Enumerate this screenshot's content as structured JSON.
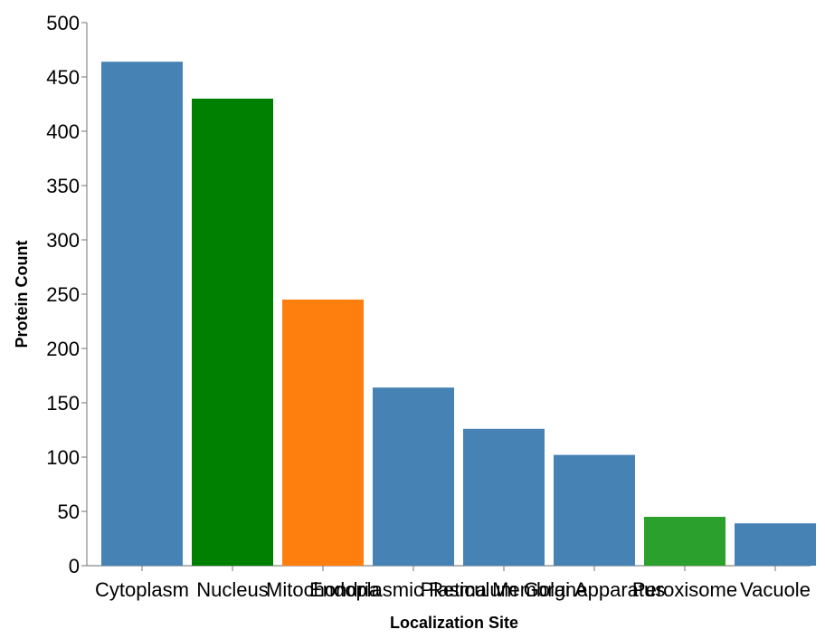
{
  "chart_data": {
    "type": "bar",
    "title": "",
    "xlabel": "Localization Site",
    "ylabel": "Protein Count",
    "ylim": [
      0,
      500
    ],
    "yticks": [
      0,
      50,
      100,
      150,
      200,
      250,
      300,
      350,
      400,
      450,
      500
    ],
    "categories": [
      "Cytoplasm",
      "Nucleus",
      "Mitochondria",
      "Endoplasmic Reticulum",
      "Plasma Membrane",
      "Golgi Apparatus",
      "Peroxisome",
      "Vacuole"
    ],
    "values": [
      464,
      430,
      245,
      164,
      126,
      102,
      45,
      39
    ],
    "colors": [
      "#4682b4",
      "#008000",
      "#ff7f0e",
      "#4682b4",
      "#4682b4",
      "#4682b4",
      "#2ca02c",
      "#4682b4"
    ],
    "grid": false,
    "legend": "none"
  }
}
